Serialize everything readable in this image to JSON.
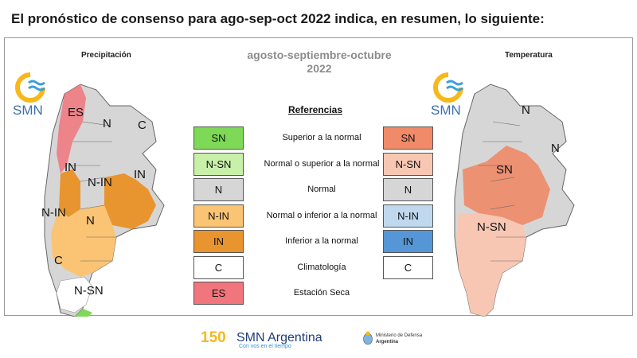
{
  "headline": "El pronóstico de consenso para  ago-sep-oct 2022 indica, en resumen, lo siguiente:",
  "panel": {
    "left_map_title": "Precipitación",
    "right_map_title": "Temperatura",
    "period_line1": "agosto-septiembre-octubre",
    "period_line2": "2022",
    "logo_text": "SMN",
    "refs_title": "Referencias"
  },
  "references": [
    {
      "code_left": "SN",
      "label": "Superior a la normal",
      "code_right": "SN",
      "color_left": "#7ed957",
      "color_right": "#f08a68"
    },
    {
      "code_left": "N-SN",
      "label": "Normal o superior a la normal",
      "code_right": "N-SN",
      "color_left": "#c9f0a8",
      "color_right": "#f8c7b3"
    },
    {
      "code_left": "N",
      "label": "Normal",
      "code_right": "N",
      "color_left": "#d6d6d6",
      "color_right": "#d6d6d6"
    },
    {
      "code_left": "N-IN",
      "label": "Normal o inferior a la normal",
      "code_right": "N-IN",
      "color_left": "#fbc474",
      "color_right": "#bfd8ee"
    },
    {
      "code_left": "IN",
      "label": "Inferior a la normal",
      "code_right": "IN",
      "color_left": "#e8952f",
      "color_right": "#5597d6"
    },
    {
      "code_left": "C",
      "label": "Climatología",
      "code_right": "C",
      "color_left": "#ffffff",
      "color_right": "#ffffff"
    },
    {
      "code_left": "ES",
      "label": "Estación Seca",
      "color_left": "#f0757d"
    }
  ],
  "precip_map_labels": [
    "ES",
    "N",
    "C",
    "IN",
    "IN",
    "N-IN",
    "N-IN",
    "N",
    "C",
    "N-SN"
  ],
  "temp_map_labels": [
    "N",
    "N",
    "SN",
    "N-SN"
  ],
  "footer": {
    "badge": "150",
    "brand": "SMN Argentina",
    "brand_sub": "Con vos en el tiempo",
    "ministry_line1": "Ministerio de Defensa",
    "ministry_line2": "Argentina"
  }
}
